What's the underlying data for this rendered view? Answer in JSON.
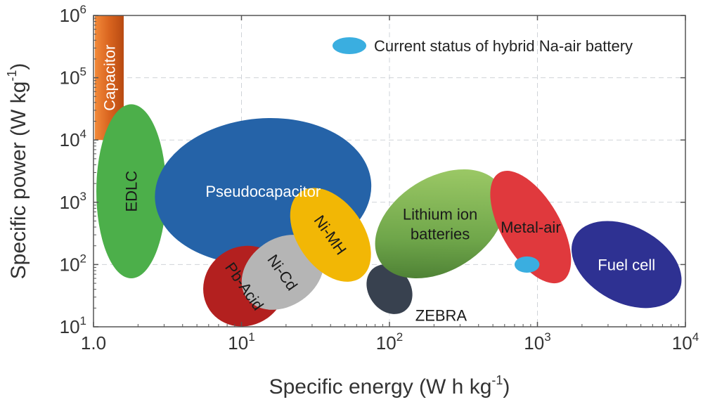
{
  "chart_data": {
    "type": "scatter",
    "subtype": "ragone-region-plot",
    "title": "",
    "xlabel": {
      "main": "Specific energy (W h kg",
      "sup": "-1",
      "end": ")"
    },
    "ylabel": {
      "main": "Specific power (W kg",
      "sup": "-1",
      "end": ")"
    },
    "x_scale": "log",
    "y_scale": "log",
    "xlim": [
      1,
      10000
    ],
    "ylim": [
      10,
      1000000
    ],
    "grid": true,
    "x_ticks": [
      {
        "base": "10",
        "exp": "0",
        "plain": "1.0"
      },
      {
        "base": "10",
        "exp": "1"
      },
      {
        "base": "10",
        "exp": "2"
      },
      {
        "base": "10",
        "exp": "3"
      },
      {
        "base": "10",
        "exp": "4"
      }
    ],
    "y_ticks": [
      {
        "base": "10",
        "exp": "1"
      },
      {
        "base": "10",
        "exp": "2"
      },
      {
        "base": "10",
        "exp": "3"
      },
      {
        "base": "10",
        "exp": "4"
      },
      {
        "base": "10",
        "exp": "5"
      },
      {
        "base": "10",
        "exp": "6"
      }
    ],
    "legend": {
      "placement": "top-right",
      "label": "Current status of hybrid Na-air battery",
      "color": "#3aaee0"
    },
    "regions": [
      {
        "label": "Capacitor",
        "shape": "rect",
        "x_range": [
          1.02,
          1.6
        ],
        "y_range": [
          10000,
          1000000
        ],
        "color": "#d9641f",
        "text_color": "#ffffff",
        "label_rotation": -90
      },
      {
        "label": "EDLC",
        "shape": "ellipse",
        "center": [
          1.8,
          1500
        ],
        "x_range": [
          1.05,
          3.1
        ],
        "y_range": [
          60,
          25000
        ],
        "rotation": 0,
        "color": "#4caf4a",
        "text_color": "#1a1a1a",
        "label_rotation": -90
      },
      {
        "label": "Pseudocapacitor",
        "shape": "ellipse",
        "center": [
          14,
          1500
        ],
        "x_range": [
          2.6,
          75
        ],
        "y_range": [
          100,
          10000
        ],
        "rotation": -5,
        "color": "#2563a8",
        "text_color": "#ffffff",
        "label_rotation": 0
      },
      {
        "label": "Pb-Acid",
        "shape": "ellipse",
        "center": [
          10.5,
          45
        ],
        "x_range": [
          6.5,
          20
        ],
        "y_range": [
          12,
          200
        ],
        "rotation": 55,
        "color": "#b3201f",
        "text_color": "#1a1a1a",
        "label_rotation": 55
      },
      {
        "label": "Ni-Cd",
        "shape": "ellipse",
        "center": [
          19,
          75
        ],
        "x_range": [
          11,
          36
        ],
        "y_range": [
          20,
          300
        ],
        "rotation": 55,
        "color": "#b5b5b5",
        "text_color": "#1a1a1a",
        "label_rotation": 55
      },
      {
        "label": "Ni-MH",
        "shape": "ellipse",
        "center": [
          40,
          300
        ],
        "x_range": [
          24,
          75
        ],
        "y_range": [
          60,
          1700
        ],
        "rotation": 55,
        "color": "#f2b705",
        "text_color": "#1a1a1a",
        "label_rotation": 55
      },
      {
        "label": "ZEBRA",
        "shape": "ellipse",
        "center": [
          100,
          40
        ],
        "x_range": [
          70,
          135
        ],
        "y_range": [
          20,
          100
        ],
        "rotation": 55,
        "color": "#38414f",
        "text_color": "#1a1a1a",
        "label_outside": true,
        "label_rotation": 0
      },
      {
        "label": "Lithium ion batteries",
        "label_lines": [
          "Lithium ion",
          "batteries"
        ],
        "shape": "ellipse",
        "center": [
          220,
          450
        ],
        "x_range": [
          80,
          560
        ],
        "y_range": [
          60,
          3000
        ],
        "rotation": 58,
        "color": "#6fa64a",
        "text_color": "#1a1a1a",
        "label_rotation": 0
      },
      {
        "label": "Metal-air",
        "shape": "ellipse",
        "center": [
          900,
          400
        ],
        "x_range": [
          480,
          1500
        ],
        "y_range": [
          50,
          3000
        ],
        "rotation": 60,
        "color": "#e0393d",
        "text_color": "#1a1a1a",
        "label_rotation": 0
      },
      {
        "label": "Fuel cell",
        "shape": "ellipse",
        "center": [
          4000,
          100
        ],
        "x_range": [
          1700,
          7000
        ],
        "y_range": [
          25,
          500
        ],
        "rotation": 28,
        "color": "#2e3192",
        "text_color": "#ffffff",
        "label_rotation": 0
      },
      {
        "label": "Current status of hybrid Na-air battery",
        "shape": "ellipse",
        "center": [
          850,
          100
        ],
        "x_range": [
          700,
          1000
        ],
        "y_range": [
          75,
          135
        ],
        "rotation": 0,
        "color": "#3aaee0",
        "text_color": "",
        "is_legend_marker": true
      }
    ]
  }
}
